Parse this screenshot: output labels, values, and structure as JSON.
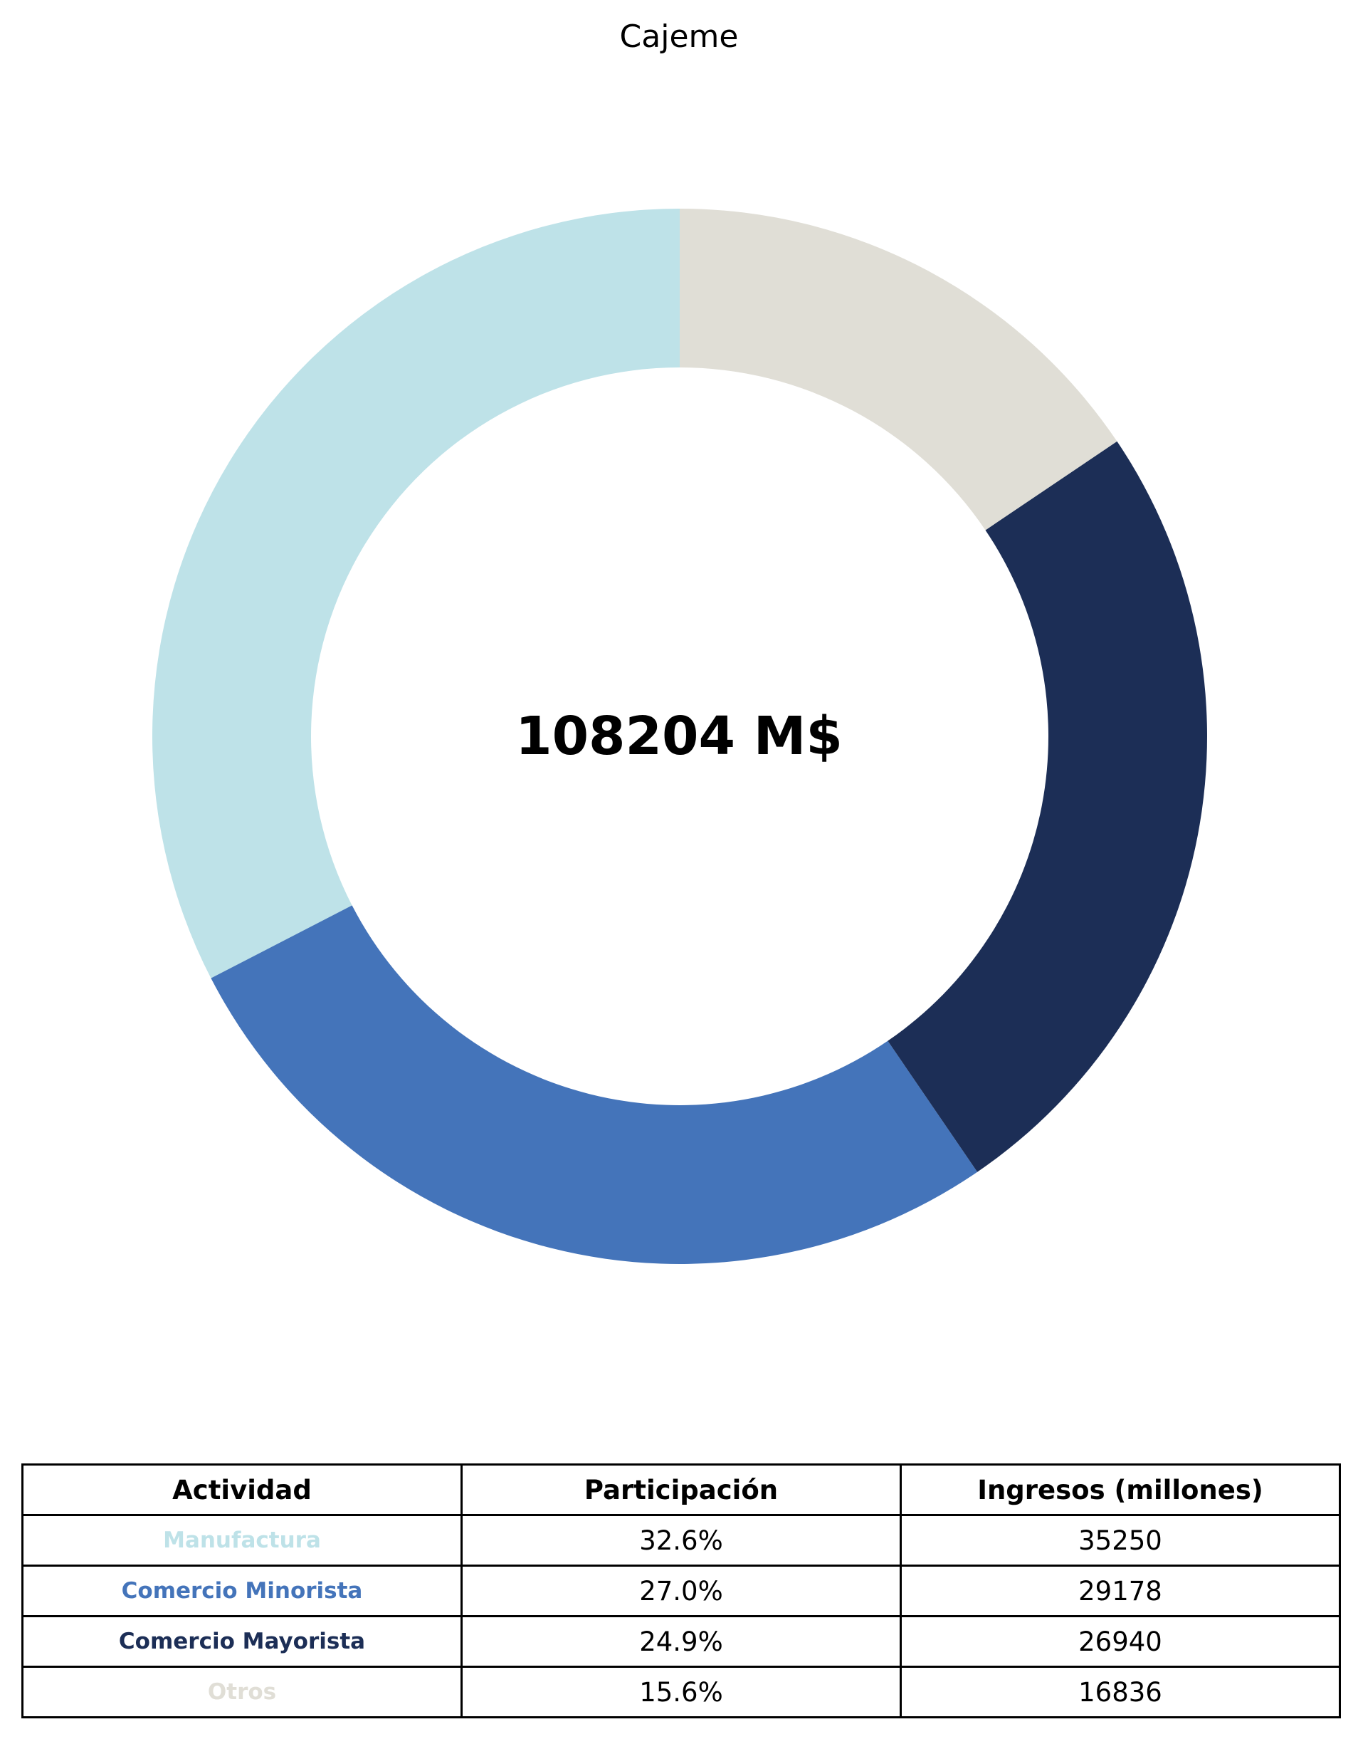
{
  "chart_data": {
    "type": "pie",
    "title": "Cajeme",
    "center_label": "108204 M$",
    "start_angle_deg": 90,
    "direction": "counterclockwise",
    "slices": [
      {
        "label": "Manufactura",
        "value": 35250,
        "percent": "32.6%",
        "color": "#bee2e8"
      },
      {
        "label": "Comercio Minorista",
        "value": 29178,
        "percent": "27.0%",
        "color": "#4474ba"
      },
      {
        "label": "Comercio Mayorista",
        "value": 26940,
        "percent": "24.9%",
        "color": "#1c2e56"
      },
      {
        "label": "Otros",
        "value": 16836,
        "percent": "15.6%",
        "color": "#e0ded6"
      }
    ]
  },
  "table": {
    "headers": [
      "Actividad",
      "Participación",
      "Ingresos (millones)"
    ],
    "rows": [
      {
        "label": "Manufactura",
        "share": "32.6%",
        "income": "35250"
      },
      {
        "label": "Comercio Minorista",
        "share": "27.0%",
        "income": "29178"
      },
      {
        "label": "Comercio Mayorista",
        "share": "24.9%",
        "income": "26940"
      },
      {
        "label": "Otros",
        "share": "15.6%",
        "income": "16836"
      }
    ]
  }
}
